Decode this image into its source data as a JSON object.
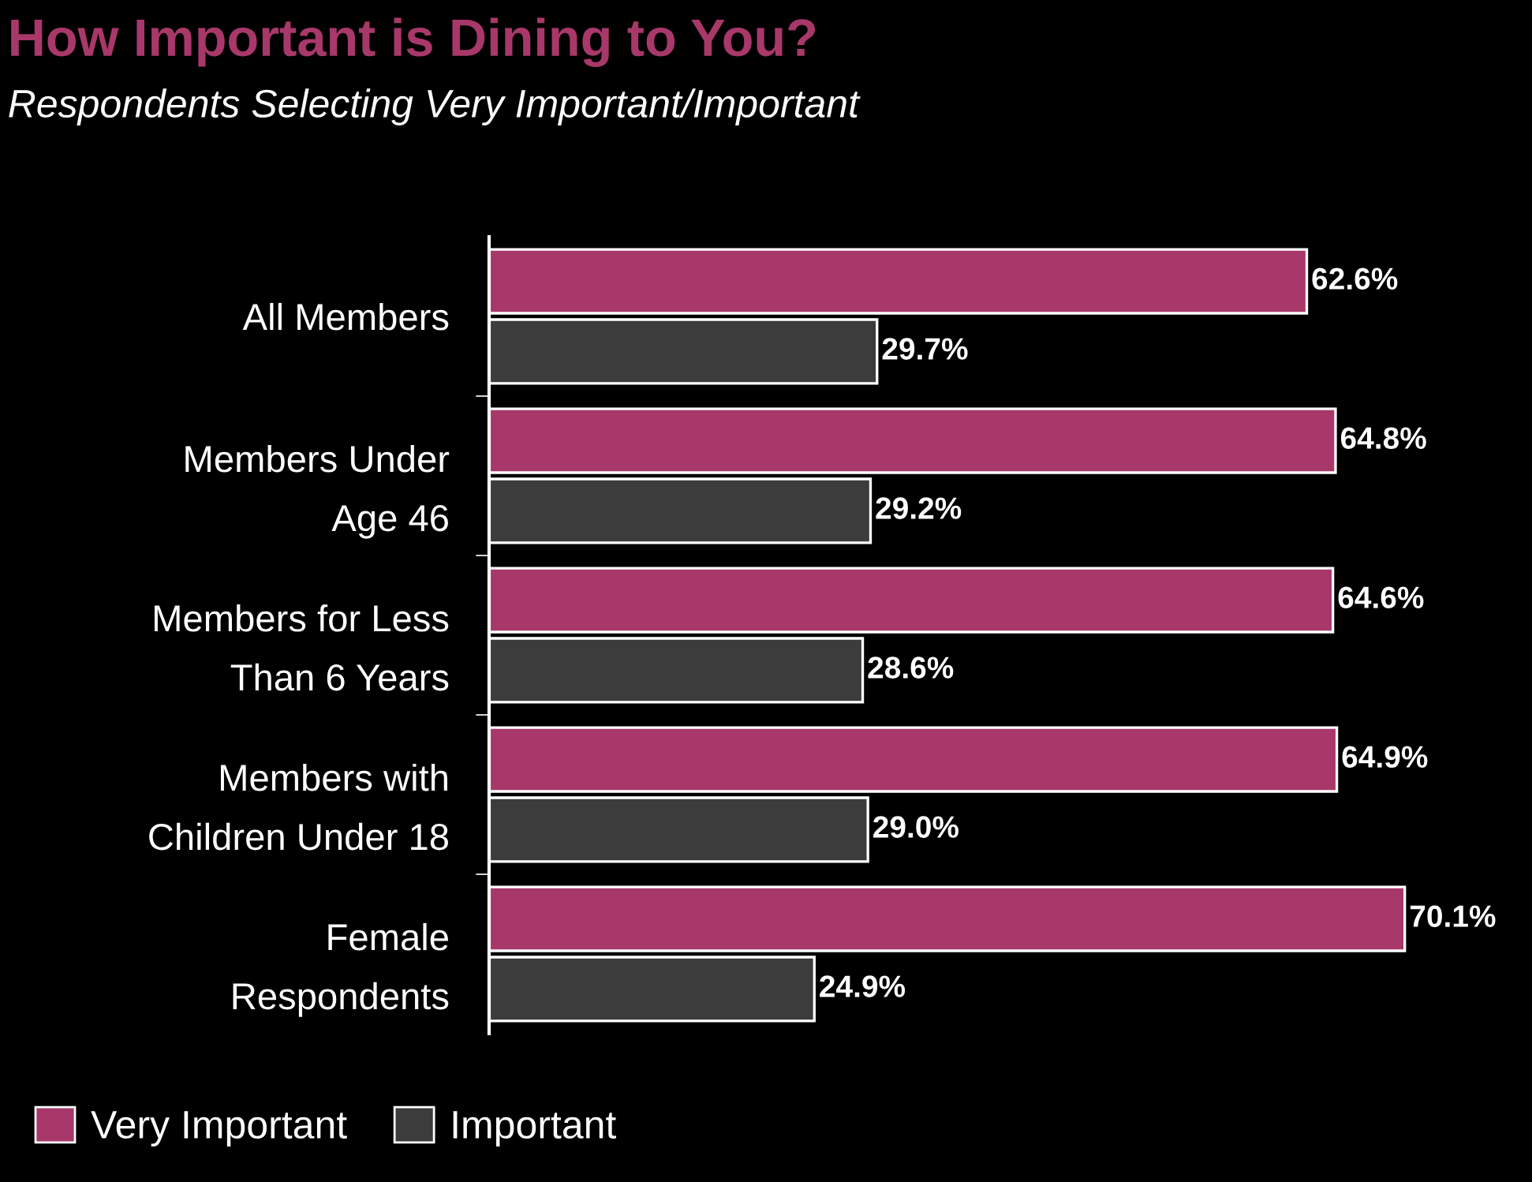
{
  "chart_data": {
    "type": "bar",
    "orientation": "horizontal",
    "title": "How Important is Dining to You?",
    "subtitle": "Respondents Selecting Very Important/Important",
    "categories": [
      "All Members",
      "Members Under\nAge 46",
      "Members for Less\nThan 6 Years",
      "Members with\nChildren Under 18",
      "Female\nRespondents"
    ],
    "series": [
      {
        "name": "Very Important",
        "color": "#a8386a",
        "values": [
          62.6,
          64.8,
          64.6,
          64.9,
          70.1
        ],
        "value_labels": [
          "62.6%",
          "64.8%",
          "64.6%",
          "64.9%",
          "70.1%"
        ]
      },
      {
        "name": "Important",
        "color": "#3c3c3c",
        "values": [
          29.7,
          29.2,
          28.6,
          29.0,
          24.9
        ],
        "value_labels": [
          "29.7%",
          "29.2%",
          "28.6%",
          "29.0%",
          "24.9%"
        ]
      }
    ],
    "legend": "bottom left",
    "grid": false
  }
}
